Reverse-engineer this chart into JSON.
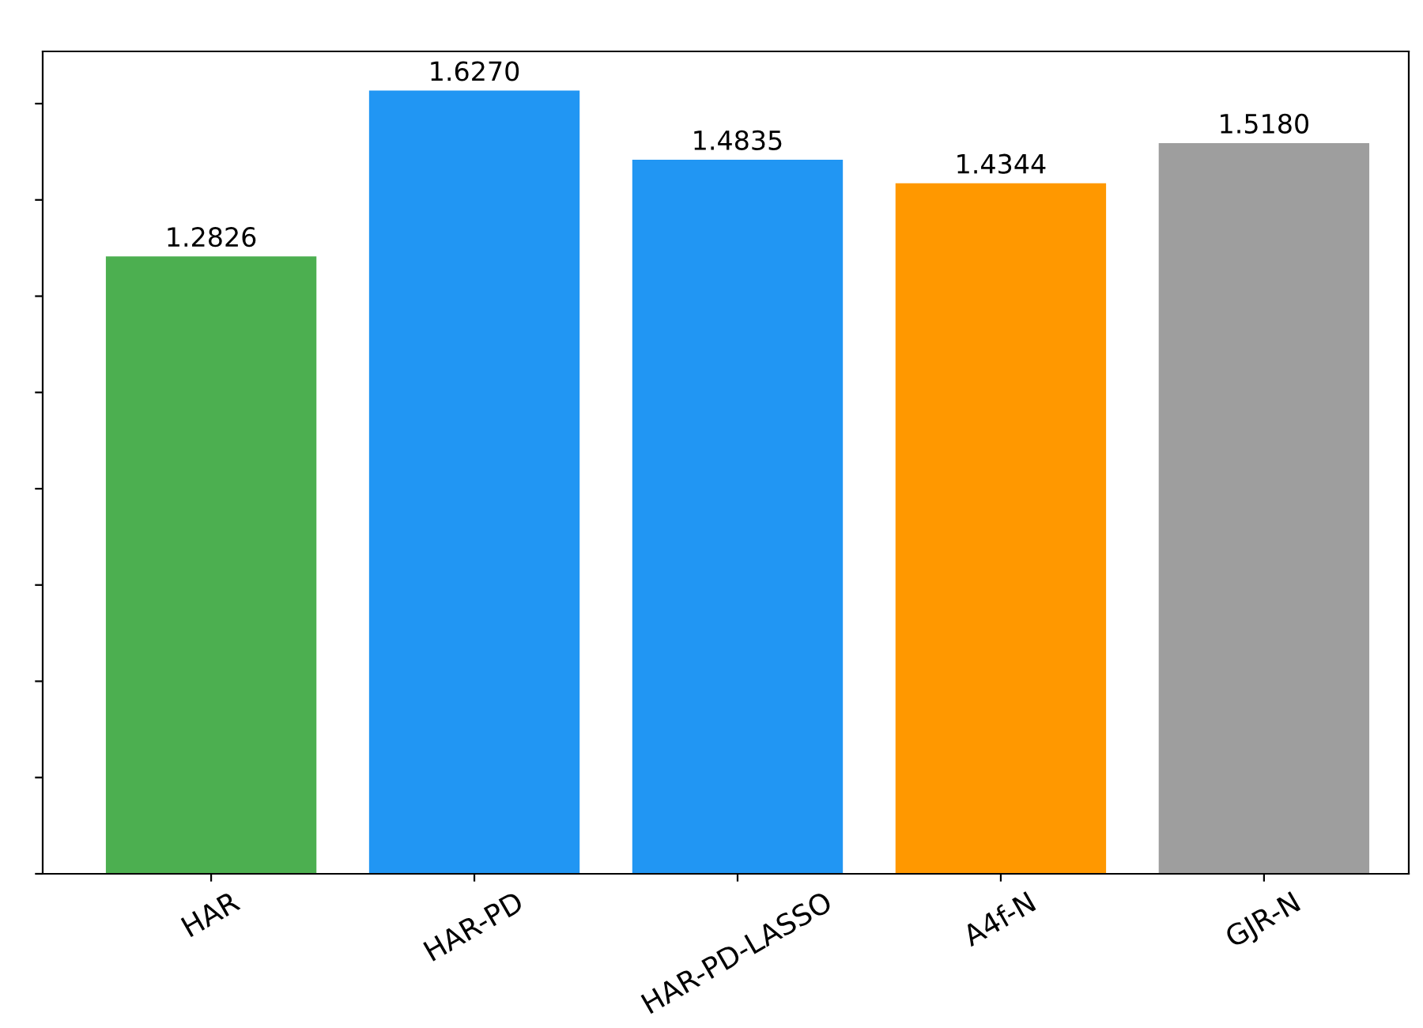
{
  "chart_data": {
    "type": "bar",
    "categories": [
      "HAR",
      "HAR-PD",
      "HAR-PD-LASSO",
      "A4f-N",
      "GJR-N"
    ],
    "values": [
      1.2826,
      1.627,
      1.4835,
      1.4344,
      1.518
    ],
    "colors": [
      "#4caf50",
      "#2196f3",
      "#2196f3",
      "#ff9800",
      "#9e9e9e"
    ],
    "value_labels": [
      "1.2826",
      "1.6270",
      "1.4835",
      "1.4344",
      "1.5180"
    ],
    "ylim": [
      0,
      1.7085
    ],
    "yticks": [
      {
        "value": 0,
        "label": null
      },
      {
        "value": 0.2,
        "label": null
      },
      {
        "value": 0.4,
        "label": null
      },
      {
        "value": 0.6,
        "label": null
      },
      {
        "value": 0.8,
        "label": null
      },
      {
        "value": 1.0,
        "label": null
      },
      {
        "value": 1.2,
        "label": null
      },
      {
        "value": 1.4,
        "label": null
      },
      {
        "value": 1.6,
        "label": null
      }
    ],
    "tick_labels": "x",
    "grid": false
  }
}
